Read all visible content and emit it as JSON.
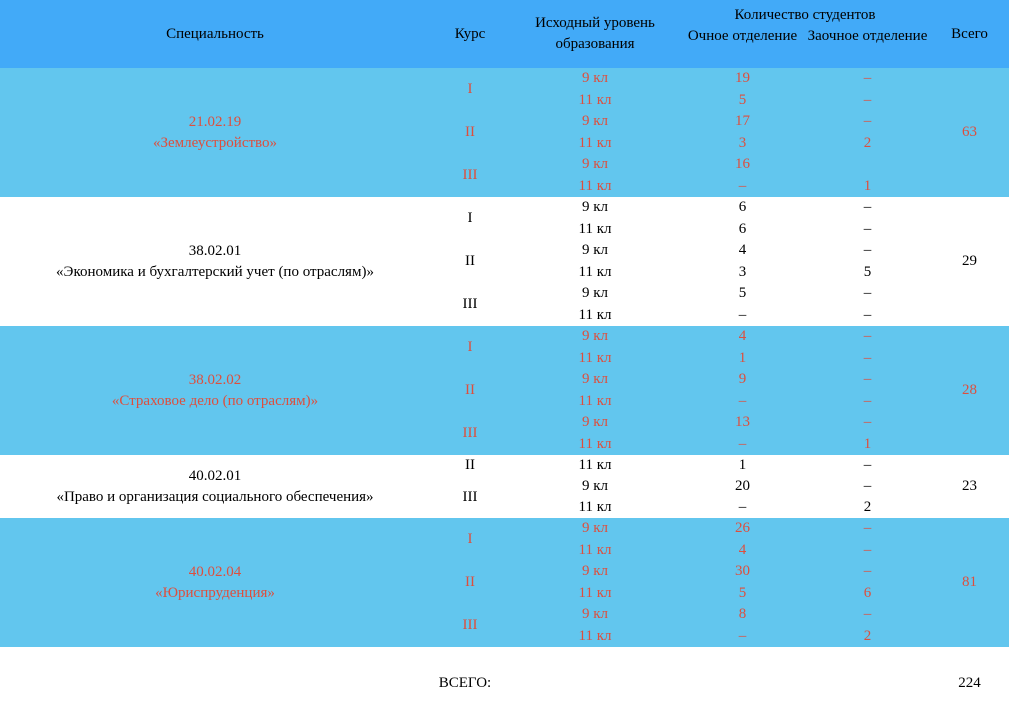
{
  "colors": {
    "header_bg": "#42aaf8",
    "block_bg": "#62c6ee",
    "accent_text": "#dd4f3e",
    "text": "#000000"
  },
  "header": {
    "specialty": "Специальность",
    "course": "Курс",
    "education_level": "Исходный уровень образования",
    "students_group": "Количество студентов",
    "full_time": "Очное отделение",
    "part_time": "Заочное отделение",
    "total": "Всего"
  },
  "blocks": [
    {
      "code": "21.02.19",
      "name": "«Землеустройство»",
      "total": "63",
      "courses": [
        {
          "course": "I",
          "rows": [
            {
              "level": "9 кл",
              "full": "19",
              "part": "–"
            },
            {
              "level": "11 кл",
              "full": "5",
              "part": "–"
            }
          ]
        },
        {
          "course": "II",
          "rows": [
            {
              "level": "9 кл",
              "full": "17",
              "part": "–"
            },
            {
              "level": "11 кл",
              "full": "3",
              "part": "2"
            }
          ]
        },
        {
          "course": "III",
          "rows": [
            {
              "level": "9 кл",
              "full": "16",
              "part": ""
            },
            {
              "level": "11 кл",
              "full": "–",
              "part": "1"
            }
          ]
        }
      ]
    },
    {
      "code": "38.02.01",
      "name": "«Экономика и бухгалтерский учет (по отраслям)»",
      "total": "29",
      "courses": [
        {
          "course": "I",
          "rows": [
            {
              "level": "9 кл",
              "full": "6",
              "part": "–"
            },
            {
              "level": "11 кл",
              "full": "6",
              "part": "–"
            }
          ]
        },
        {
          "course": "II",
          "rows": [
            {
              "level": "9 кл",
              "full": "4",
              "part": "–"
            },
            {
              "level": "11 кл",
              "full": "3",
              "part": "5"
            }
          ]
        },
        {
          "course": "III",
          "rows": [
            {
              "level": "9 кл",
              "full": "5",
              "part": "–"
            },
            {
              "level": "11 кл",
              "full": "–",
              "part": "–"
            }
          ]
        }
      ]
    },
    {
      "code": "38.02.02",
      "name": "«Страховое дело (по отраслям)»",
      "total": "28",
      "courses": [
        {
          "course": "I",
          "rows": [
            {
              "level": "9 кл",
              "full": "4",
              "part": "–"
            },
            {
              "level": "11 кл",
              "full": "1",
              "part": "–"
            }
          ]
        },
        {
          "course": "II",
          "rows": [
            {
              "level": "9 кл",
              "full": "9",
              "part": "–"
            },
            {
              "level": "11 кл",
              "full": "–",
              "part": "–"
            }
          ]
        },
        {
          "course": "III",
          "rows": [
            {
              "level": "9 кл",
              "full": "13",
              "part": "–"
            },
            {
              "level": "11 кл",
              "full": "–",
              "part": "1"
            }
          ]
        }
      ]
    },
    {
      "code": "40.02.01",
      "name": "«Право и организация социального обеспечения»",
      "total": "23",
      "courses": [
        {
          "course": "II",
          "rows": [
            {
              "level": "11 кл",
              "full": "1",
              "part": "–"
            }
          ]
        },
        {
          "course": "III",
          "rows": [
            {
              "level": "9 кл",
              "full": "20",
              "part": "–"
            },
            {
              "level": "11 кл",
              "full": "–",
              "part": "2"
            }
          ]
        }
      ]
    },
    {
      "code": "40.02.04",
      "name": "«Юриспруденция»",
      "total": "81",
      "courses": [
        {
          "course": "I",
          "rows": [
            {
              "level": "9 кл",
              "full": "26",
              "part": "–"
            },
            {
              "level": "11 кл",
              "full": "4",
              "part": "–"
            }
          ]
        },
        {
          "course": "II",
          "rows": [
            {
              "level": "9 кл",
              "full": "30",
              "part": "–"
            },
            {
              "level": "11 кл",
              "full": "5",
              "part": "6"
            }
          ]
        },
        {
          "course": "III",
          "rows": [
            {
              "level": "9 кл",
              "full": "8",
              "part": "–"
            },
            {
              "level": "11 кл",
              "full": "–",
              "part": "2"
            }
          ]
        }
      ]
    }
  ],
  "footer": {
    "label": "ВСЕГО:",
    "total": "224"
  }
}
